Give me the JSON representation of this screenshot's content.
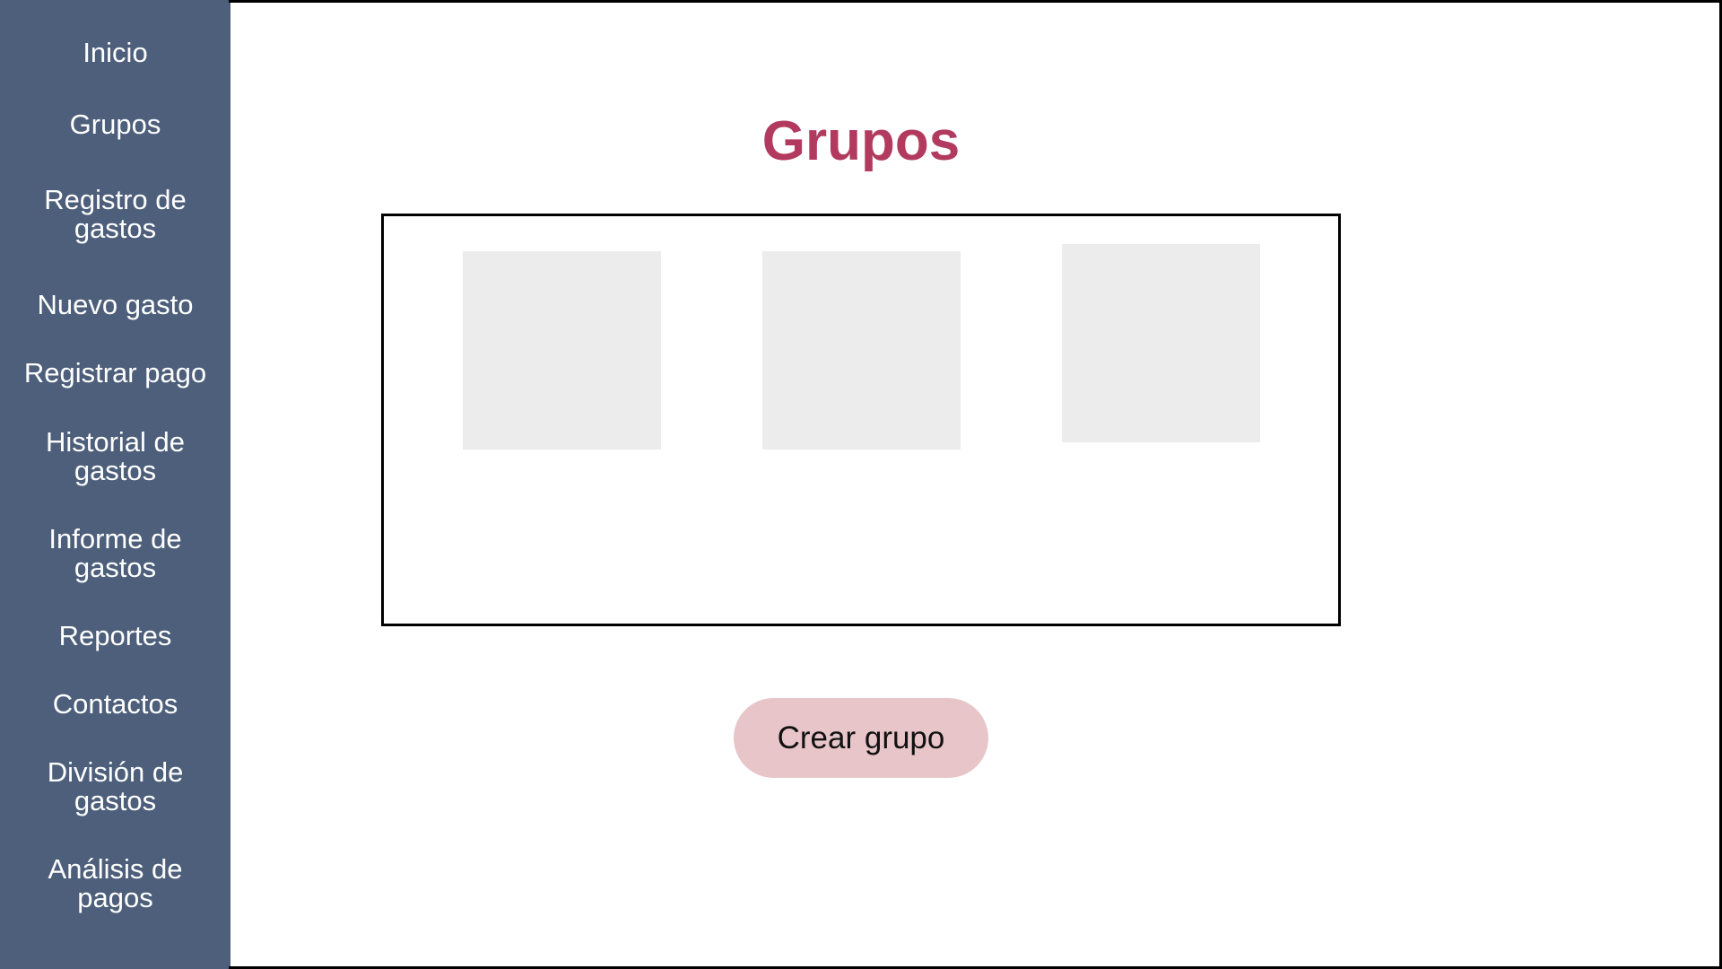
{
  "sidebar": {
    "background_color": "#4d5f7b",
    "items": [
      {
        "label": "Inicio"
      },
      {
        "label": "Grupos"
      },
      {
        "label": "Registro de\ngastos"
      },
      {
        "label": "Nuevo gasto"
      },
      {
        "label": "Registrar pago"
      },
      {
        "label": "Historial de\ngastos"
      },
      {
        "label": "Informe de\ngastos"
      },
      {
        "label": "Reportes"
      },
      {
        "label": "Contactos"
      },
      {
        "label": "División de\ngastos"
      },
      {
        "label": "Análisis de\npagos"
      }
    ]
  },
  "main": {
    "title": "Grupos",
    "title_color": "#b23a5f",
    "group_cards_count": 3,
    "card_color": "#ececec",
    "create_button": {
      "label": "Crear grupo",
      "color": "#e8c5c9"
    }
  }
}
